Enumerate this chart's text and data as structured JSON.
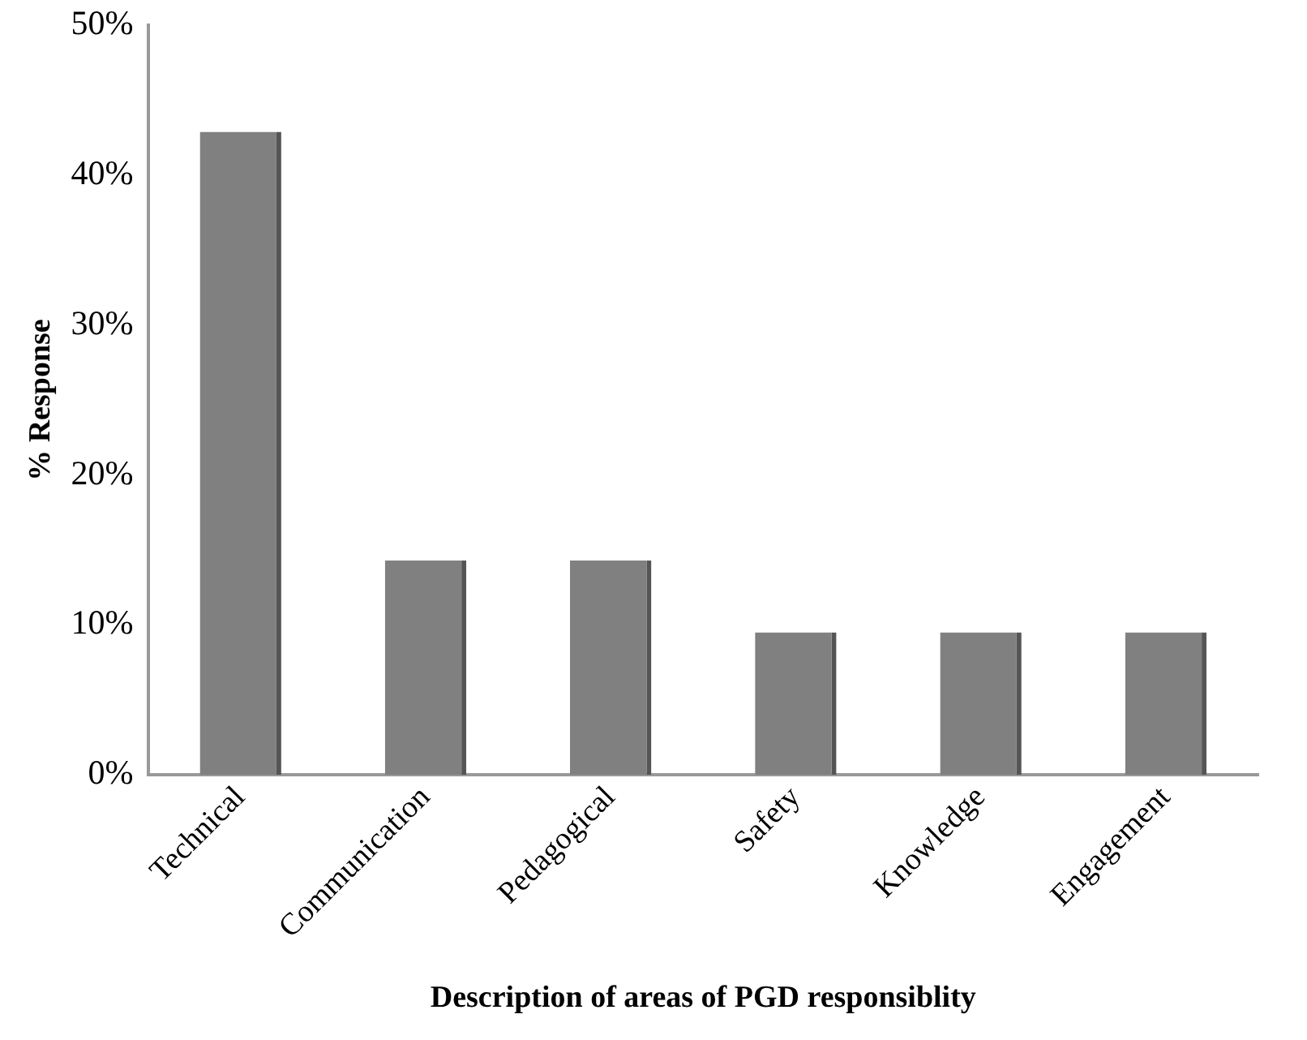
{
  "chart_data": {
    "type": "bar",
    "xlabel": "Description of areas of PGD responsiblity",
    "ylabel": "% Response",
    "categories": [
      "Technical",
      "Communication",
      "Pedagogical",
      "Safety",
      "Knowledge",
      "Engagement"
    ],
    "values": [
      42.9,
      14.3,
      14.3,
      9.5,
      9.5,
      9.5
    ],
    "color": "#808080",
    "ylim": [
      0,
      50
    ],
    "yticks": [
      {
        "value": 0,
        "label": "0%"
      },
      {
        "value": 10,
        "label": "10%"
      },
      {
        "value": 20,
        "label": "20%"
      },
      {
        "value": 30,
        "label": "30%"
      },
      {
        "value": 40,
        "label": "40%"
      },
      {
        "value": 50,
        "label": "50%"
      }
    ],
    "grid": false,
    "legend": false
  }
}
